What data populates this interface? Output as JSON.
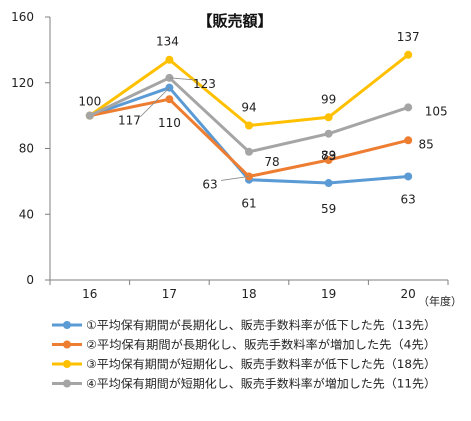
{
  "chart_data": {
    "type": "line",
    "title": "【販売額】",
    "x_unit": "（年度）",
    "categories": [
      "16",
      "17",
      "18",
      "19",
      "20"
    ],
    "ylim": [
      0,
      160
    ],
    "yticks": [
      0,
      40,
      80,
      120,
      160
    ],
    "grid": false,
    "legend_position": "bottom",
    "series": [
      {
        "name": "①平均保有期間が長期化し、販売手数料率が低下した先（13先）",
        "color": "#5b9bd5",
        "values": [
          100,
          117,
          61,
          59,
          63
        ]
      },
      {
        "name": "②平均保有期間が長期化し、販売手数料率が増加した先（4先）",
        "color": "#ed7d31",
        "values": [
          100,
          110,
          63,
          73,
          85
        ]
      },
      {
        "name": "③平均保有期間が短期化し、販売手数料率が低下した先（18先）",
        "color": "#ffc000",
        "values": [
          100,
          134,
          94,
          99,
          137
        ]
      },
      {
        "name": "④平均保有期間が短期化し、販売手数料率が増加した先（11先）",
        "color": "#a5a5a5",
        "values": [
          100,
          123,
          78,
          89,
          105
        ]
      }
    ]
  }
}
